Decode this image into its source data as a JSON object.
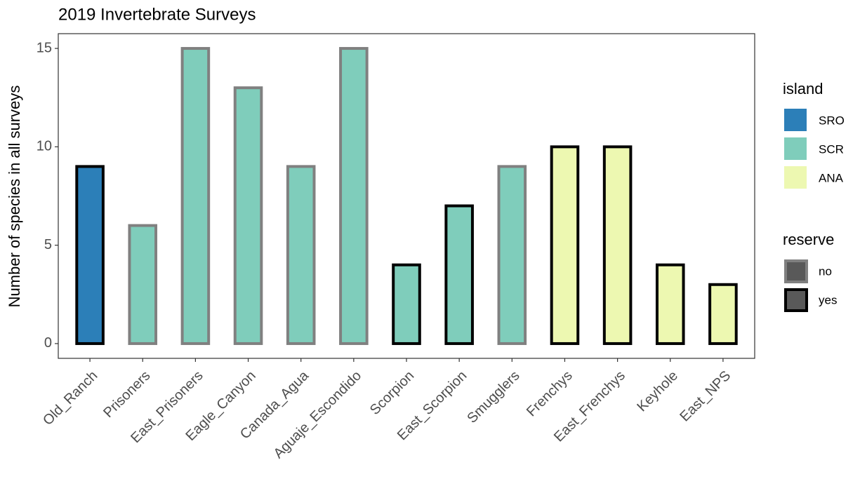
{
  "chart_data": {
    "type": "bar",
    "title": "2019 Invertebrate Surveys",
    "y_label": "Number of species in all surveys",
    "categories": [
      "Old_Ranch",
      "Prisoners",
      "East_Prisoners",
      "Eagle_Canyon",
      "Canada_Agua",
      "Aguaje_Escondido",
      "Scorpion",
      "East_Scorpion",
      "Smugglers",
      "Frenchys",
      "East_Frenchys",
      "Keyhole",
      "East_NPS"
    ],
    "values": [
      9,
      6,
      15,
      13,
      9,
      15,
      4,
      7,
      9,
      10,
      10,
      4,
      3
    ],
    "island": [
      "SRO",
      "SCR",
      "SCR",
      "SCR",
      "SCR",
      "SCR",
      "SCR",
      "SCR",
      "SCR",
      "ANA",
      "ANA",
      "ANA",
      "ANA"
    ],
    "reserve": [
      "yes",
      "no",
      "no",
      "no",
      "no",
      "no",
      "yes",
      "yes",
      "no",
      "yes",
      "yes",
      "yes",
      "yes"
    ],
    "ylim": [
      -0.75,
      15.75
    ],
    "yticks": [
      0,
      5,
      10,
      15
    ],
    "grid": false,
    "fill_legend": {
      "title": "island",
      "entries": [
        {
          "name": "SRO",
          "color": "#2c7fb8"
        },
        {
          "name": "SCR",
          "color": "#7fcdbb"
        },
        {
          "name": "ANA",
          "color": "#edf8b1"
        }
      ]
    },
    "border_legend": {
      "title": "reserve",
      "entries": [
        {
          "name": "no",
          "color": "#808080"
        },
        {
          "name": "yes",
          "color": "#000000"
        }
      ]
    }
  }
}
